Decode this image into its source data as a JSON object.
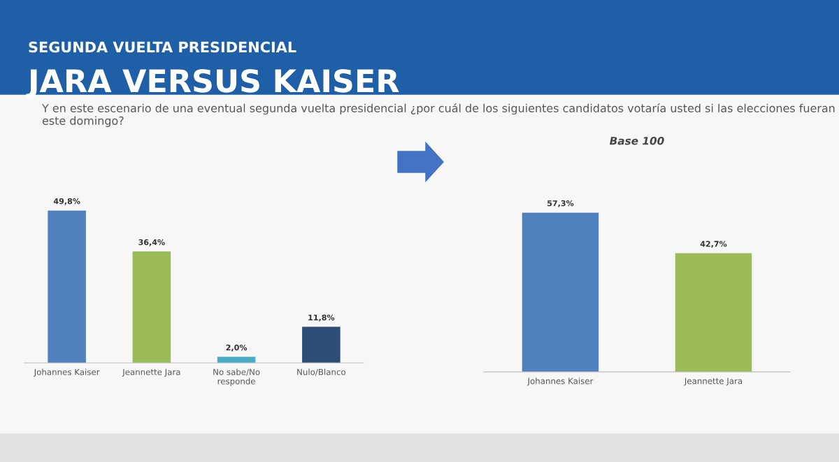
{
  "chart_data": [
    {
      "type": "bar",
      "title": "SEGUNDA VUELTA PRESIDENCIAL",
      "subtitle": "JARA VERSUS KAISER",
      "annotations": [
        "Y en este escenario de una eventual segunda vuelta presidencial ¿por cuál de los siguientes candidatos votaría usted si las elecciones fueran este domingo?"
      ],
      "categories": [
        "Johannes Kaiser",
        "Jeannette Jara",
        "No sabe/No\nresponde",
        "Nulo/Blanco"
      ],
      "values": [
        49.8,
        36.4,
        2.0,
        11.8
      ],
      "colors": [
        "#4f81bd",
        "#9bbb59",
        "#4bacc6",
        "#2c4d75"
      ],
      "value_labels": [
        "49,8%",
        "36,4%",
        "2,0%",
        "11,8%"
      ],
      "grid": false,
      "legend": false
    },
    {
      "type": "bar",
      "title": "Base 100",
      "categories": [
        "Johannes Kaiser",
        "Jeannette Jara"
      ],
      "values": [
        57.3,
        42.7
      ],
      "colors": [
        "#4f81bd",
        "#9bbb59"
      ],
      "value_labels": [
        "57,3%",
        "42,7%"
      ],
      "grid": false,
      "legend": false
    }
  ]
}
